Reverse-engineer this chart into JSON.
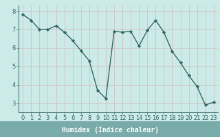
{
  "x": [
    0,
    1,
    2,
    3,
    4,
    5,
    6,
    7,
    8,
    9,
    10,
    11,
    12,
    13,
    14,
    15,
    16,
    17,
    18,
    19,
    20,
    21,
    22,
    23
  ],
  "y": [
    7.8,
    7.5,
    7.0,
    7.0,
    7.2,
    6.85,
    6.4,
    5.85,
    5.3,
    3.7,
    3.25,
    6.9,
    6.85,
    6.9,
    6.1,
    6.95,
    7.5,
    6.85,
    5.8,
    5.2,
    4.5,
    3.9,
    2.9,
    3.05
  ],
  "line_color": "#336666",
  "marker": "D",
  "marker_size": 2.2,
  "bg_color": "#cceae8",
  "grid_color": "#d4b8b8",
  "axis_color": "#336666",
  "xlabel": "Humidex (Indice chaleur)",
  "xlabel_bg": "#7aabab",
  "ylim": [
    2.5,
    8.3
  ],
  "xlim": [
    -0.5,
    23.5
  ],
  "yticks": [
    3,
    4,
    5,
    6,
    7,
    8
  ],
  "xticks": [
    0,
    1,
    2,
    3,
    4,
    5,
    6,
    7,
    8,
    9,
    10,
    11,
    12,
    13,
    14,
    15,
    16,
    17,
    18,
    19,
    20,
    21,
    22,
    23
  ],
  "xlabel_fontsize": 7.0,
  "tick_fontsize": 6.0,
  "line_width": 1.0
}
